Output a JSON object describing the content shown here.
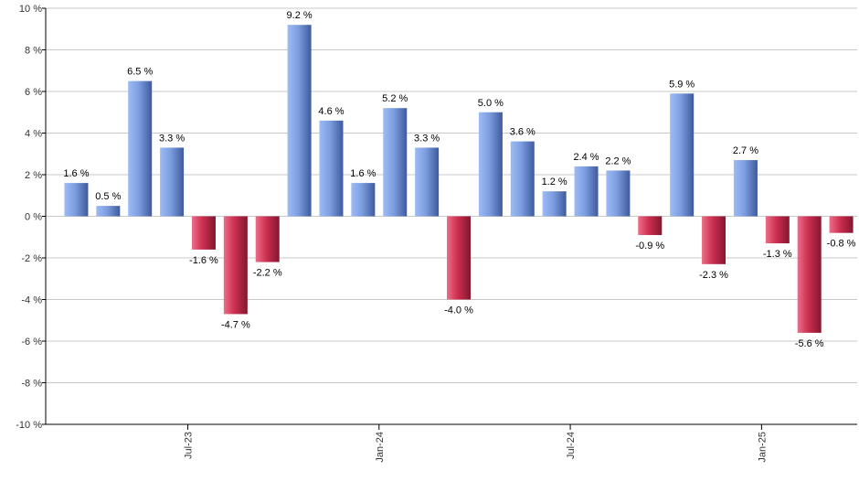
{
  "chart_data": {
    "type": "bar",
    "title": "",
    "xlabel": "",
    "ylabel": "",
    "ylim": [
      -10,
      10
    ],
    "yticks": [
      -10,
      -8,
      -6,
      -4,
      -2,
      0,
      2,
      4,
      6,
      8,
      10
    ],
    "ytick_suffix": " %",
    "grid": true,
    "values": [
      1.6,
      0.5,
      6.5,
      3.3,
      -1.6,
      -4.7,
      -2.2,
      9.2,
      4.6,
      1.6,
      5.2,
      3.3,
      -4.0,
      5.0,
      3.6,
      1.2,
      2.4,
      2.2,
      -0.9,
      5.9,
      -2.3,
      2.7,
      -1.3,
      -5.6,
      -0.8
    ],
    "value_labels": [
      "1.6 %",
      "0.5 %",
      "6.5 %",
      "3.3 %",
      "-1.6 %",
      "-4.7 %",
      "-2.2 %",
      "9.2 %",
      "4.6 %",
      "1.6 %",
      "5.2 %",
      "3.3 %",
      "-4.0 %",
      "5.0 %",
      "3.6 %",
      "1.2 %",
      "2.4 %",
      "2.2 %",
      "-0.9 %",
      "5.9 %",
      "-2.3 %",
      "2.7 %",
      "-1.3 %",
      "-5.6 %",
      "-0.8 %"
    ],
    "x_tick_labels": [
      {
        "label": "Jul-23",
        "index": 3.5
      },
      {
        "label": "Jan-24",
        "index": 9.5
      },
      {
        "label": "Jul-24",
        "index": 15.5
      },
      {
        "label": "Jan-25",
        "index": 21.5
      }
    ],
    "colors": {
      "positive": "#7f9fe0",
      "negative": "#c8304f",
      "grid": "#c8c8c8",
      "axis": "#000000"
    }
  }
}
